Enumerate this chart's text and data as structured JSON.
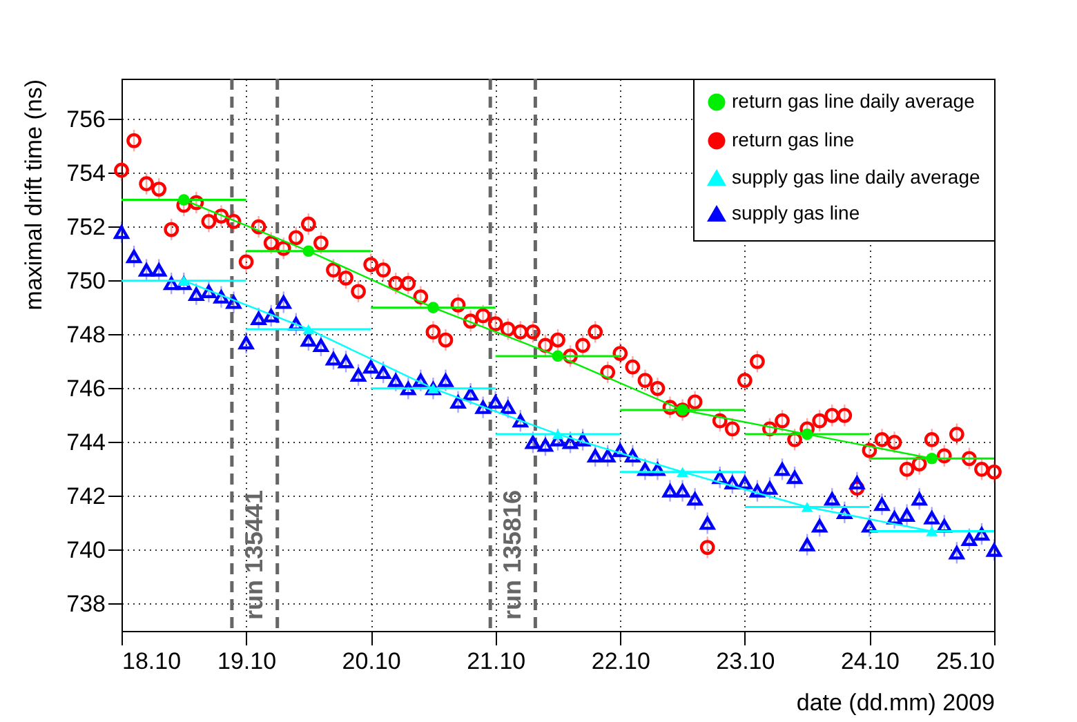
{
  "chart_data": {
    "type": "scatter",
    "xlabel": "date (dd.mm) 2009",
    "ylabel": "maximal drift time (ns)",
    "x": [
      "2009-10-18T00:00",
      "2009-10-18T02:24",
      "2009-10-18T04:48",
      "2009-10-18T07:12",
      "2009-10-18T09:36",
      "2009-10-18T12:00",
      "2009-10-18T14:24",
      "2009-10-18T16:48",
      "2009-10-18T19:12",
      "2009-10-18T21:36",
      "2009-10-19T00:00",
      "2009-10-19T02:24",
      "2009-10-19T04:48",
      "2009-10-19T07:12",
      "2009-10-19T09:36",
      "2009-10-19T12:00",
      "2009-10-19T14:24",
      "2009-10-19T16:48",
      "2009-10-19T19:12",
      "2009-10-19T21:36",
      "2009-10-20T00:00",
      "2009-10-20T02:24",
      "2009-10-20T04:48",
      "2009-10-20T07:12",
      "2009-10-20T09:36",
      "2009-10-20T12:00",
      "2009-10-20T14:24",
      "2009-10-20T16:48",
      "2009-10-20T19:12",
      "2009-10-20T21:36",
      "2009-10-21T00:00",
      "2009-10-21T02:24",
      "2009-10-21T04:48",
      "2009-10-21T07:12",
      "2009-10-21T09:36",
      "2009-10-21T12:00",
      "2009-10-21T14:24",
      "2009-10-21T16:48",
      "2009-10-21T19:12",
      "2009-10-21T21:36",
      "2009-10-22T00:00",
      "2009-10-22T02:24",
      "2009-10-22T04:48",
      "2009-10-22T07:12",
      "2009-10-22T09:36",
      "2009-10-22T12:00",
      "2009-10-22T14:24",
      "2009-10-22T16:48",
      "2009-10-22T19:12",
      "2009-10-22T21:36",
      "2009-10-23T00:00",
      "2009-10-23T02:24",
      "2009-10-23T04:48",
      "2009-10-23T07:12",
      "2009-10-23T09:36",
      "2009-10-23T12:00",
      "2009-10-23T14:24",
      "2009-10-23T16:48",
      "2009-10-23T19:12",
      "2009-10-23T21:36",
      "2009-10-24T00:00",
      "2009-10-24T02:24",
      "2009-10-24T04:48",
      "2009-10-24T07:12",
      "2009-10-24T09:36",
      "2009-10-24T12:00",
      "2009-10-24T14:24",
      "2009-10-24T16:48",
      "2009-10-24T19:12",
      "2009-10-24T21:36",
      "2009-10-25T00:00"
    ],
    "series": [
      {
        "name": "return gas line daily average",
        "type": "line",
        "marker": "circle",
        "color": "#00ee00",
        "x": [
          "2009-10-18T12:00",
          "2009-10-19T12:00",
          "2009-10-20T12:00",
          "2009-10-21T12:00",
          "2009-10-22T12:00",
          "2009-10-23T12:00",
          "2009-10-24T12:00"
        ],
        "values": [
          753.0,
          751.1,
          749.0,
          747.2,
          745.2,
          744.3,
          743.4
        ],
        "xerrors": [
          0.5,
          0.5,
          0.5,
          0.5,
          0.5,
          0.5,
          0.5
        ]
      },
      {
        "name": "return gas line",
        "marker": "circle",
        "color": "#ff0000",
        "values": [
          754.1,
          755.2,
          753.6,
          753.4,
          751.9,
          752.8,
          752.9,
          752.2,
          752.4,
          752.2,
          750.7,
          752.0,
          751.4,
          751.2,
          751.6,
          752.1,
          751.4,
          750.4,
          750.1,
          749.6,
          750.6,
          750.4,
          749.9,
          749.9,
          749.4,
          748.1,
          747.8,
          749.1,
          748.5,
          748.7,
          748.4,
          748.2,
          748.1,
          748.1,
          747.6,
          747.8,
          747.2,
          747.6,
          748.1,
          746.6,
          747.3,
          746.8,
          746.3,
          746.0,
          745.3,
          745.2,
          745.5,
          740.1,
          744.8,
          744.5,
          746.3,
          747.0,
          744.5,
          744.8,
          744.1,
          744.5,
          744.8,
          745.0,
          745.0,
          742.3,
          743.7,
          744.1,
          744.0,
          743.0,
          743.2,
          744.1,
          743.5,
          744.3,
          743.4,
          743.0,
          742.9
        ],
        "errors": [
          0.4,
          0.4,
          0.4,
          0.4,
          0.4,
          0.4,
          0.4,
          0.4,
          0.4,
          0.4,
          0.4,
          0.4,
          0.4,
          0.4,
          0.4,
          0.4,
          0.4,
          0.4,
          0.4,
          0.4,
          0.4,
          0.4,
          0.4,
          0.4,
          0.4,
          0.4,
          0.4,
          0.4,
          0.4,
          0.4,
          0.4,
          0.4,
          0.4,
          0.4,
          0.4,
          0.4,
          0.4,
          0.4,
          0.4,
          0.4,
          0.4,
          0.4,
          0.4,
          0.4,
          0.4,
          0.4,
          0.4,
          0.4,
          0.4,
          0.4,
          0.4,
          0.4,
          0.4,
          0.4,
          0.4,
          0.4,
          0.4,
          0.4,
          0.4,
          0.4,
          0.4,
          0.4,
          0.4,
          0.4,
          0.4,
          0.4,
          0.4,
          0.4,
          0.4,
          0.4,
          0.4
        ]
      },
      {
        "name": "supply gas line daily average",
        "type": "line",
        "marker": "triangle",
        "color": "#00ffff",
        "x": [
          "2009-10-18T12:00",
          "2009-10-19T12:00",
          "2009-10-20T12:00",
          "2009-10-21T12:00",
          "2009-10-22T12:00",
          "2009-10-23T12:00",
          "2009-10-24T12:00"
        ],
        "values": [
          750.0,
          748.2,
          746.0,
          744.3,
          742.9,
          741.6,
          740.7
        ],
        "xerrors": [
          0.5,
          0.5,
          0.5,
          0.5,
          0.5,
          0.5,
          0.5
        ]
      },
      {
        "name": "supply gas line",
        "marker": "triangle",
        "color": "#0000ff",
        "values": [
          751.8,
          750.9,
          750.4,
          750.4,
          749.9,
          749.9,
          749.5,
          749.6,
          749.4,
          749.2,
          747.7,
          748.6,
          748.7,
          749.2,
          748.4,
          747.8,
          747.6,
          747.1,
          747.0,
          746.5,
          746.8,
          746.6,
          746.3,
          746.0,
          746.3,
          746.0,
          746.3,
          745.5,
          745.8,
          745.3,
          745.5,
          745.3,
          744.8,
          744.0,
          743.9,
          744.1,
          744.0,
          744.1,
          743.5,
          743.5,
          743.7,
          743.5,
          743.0,
          743.0,
          742.2,
          742.2,
          741.9,
          741.0,
          742.7,
          742.5,
          742.5,
          742.2,
          742.3,
          743.0,
          742.7,
          740.2,
          740.9,
          741.9,
          741.4,
          742.5,
          740.9,
          741.7,
          741.2,
          741.3,
          741.9,
          741.2,
          740.9,
          739.9,
          740.4,
          740.6,
          740.0
        ],
        "errors": [
          0.4,
          0.4,
          0.4,
          0.4,
          0.4,
          0.4,
          0.4,
          0.4,
          0.4,
          0.4,
          0.4,
          0.4,
          0.4,
          0.4,
          0.4,
          0.4,
          0.4,
          0.4,
          0.4,
          0.4,
          0.4,
          0.4,
          0.4,
          0.4,
          0.4,
          0.4,
          0.4,
          0.4,
          0.4,
          0.4,
          0.4,
          0.4,
          0.4,
          0.4,
          0.4,
          0.4,
          0.4,
          0.4,
          0.4,
          0.4,
          0.4,
          0.4,
          0.4,
          0.4,
          0.4,
          0.4,
          0.4,
          0.4,
          0.4,
          0.4,
          0.4,
          0.4,
          0.4,
          0.4,
          0.4,
          0.4,
          0.4,
          0.4,
          0.4,
          0.4,
          0.4,
          0.4,
          0.4,
          0.4,
          0.4,
          0.4,
          0.4,
          0.4,
          0.4,
          0.4,
          0.4
        ]
      }
    ],
    "xlim": [
      "2009-10-18",
      "2009-10-25"
    ],
    "ylim": [
      737,
      757.5
    ],
    "xticks": [
      {
        "value": "2009-10-18",
        "label": "18.10"
      },
      {
        "value": "2009-10-19",
        "label": "19.10"
      },
      {
        "value": "2009-10-20",
        "label": "20.10"
      },
      {
        "value": "2009-10-21",
        "label": "21.10"
      },
      {
        "value": "2009-10-22",
        "label": "22.10"
      },
      {
        "value": "2009-10-23",
        "label": "23.10"
      },
      {
        "value": "2009-10-24",
        "label": "24.10"
      },
      {
        "value": "2009-10-25",
        "label": "25.10"
      }
    ],
    "yticks": [
      738,
      740,
      742,
      744,
      746,
      748,
      750,
      752,
      754,
      756
    ],
    "ref_lines": [
      {
        "axis": "x",
        "value": "2009-10-18T21:15",
        "label": "run 135441",
        "color": "#666666",
        "line_style": "dashed"
      },
      {
        "axis": "x",
        "value": "2009-10-19T06:00",
        "label": null,
        "color": "#666666",
        "line_style": "dashed"
      },
      {
        "axis": "x",
        "value": "2009-10-20T23:00",
        "label": "run 135816",
        "color": "#666666",
        "line_style": "dashed"
      },
      {
        "axis": "x",
        "value": "2009-10-21T07:40",
        "label": null,
        "color": "#666666",
        "line_style": "dashed"
      }
    ],
    "grid": true,
    "legend": "top right"
  }
}
